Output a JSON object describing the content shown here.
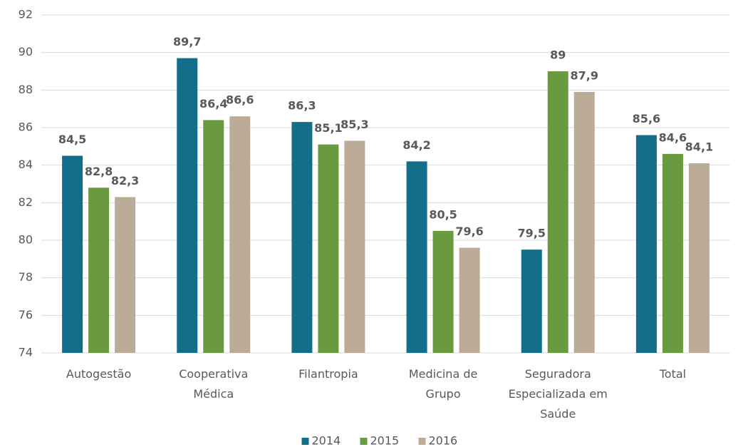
{
  "chart_data": {
    "type": "bar",
    "categories": [
      "Autogestão",
      "Cooperativa Médica",
      "Filantropia",
      "Medicina de Grupo",
      "Seguradora Especializada em Saúde",
      "Total"
    ],
    "series": [
      {
        "name": "2014",
        "color": "#136e8a",
        "values": [
          84.5,
          89.7,
          86.3,
          84.2,
          79.5,
          85.6
        ],
        "value_labels": [
          "84,5",
          "89,7",
          "86,3",
          "84,2",
          "79,5",
          "85,6"
        ]
      },
      {
        "name": "2015",
        "color": "#6a9a3f",
        "values": [
          82.8,
          86.4,
          85.1,
          80.5,
          89,
          84.6
        ],
        "value_labels": [
          "82,8",
          "86,4",
          "85,1",
          "80,5",
          "89",
          "84,6"
        ]
      },
      {
        "name": "2016",
        "color": "#bcac97",
        "values": [
          82.3,
          86.6,
          85.3,
          79.6,
          87.9,
          84.1
        ],
        "value_labels": [
          "82,3",
          "86,6",
          "85,3",
          "79,6",
          "87,9",
          "84,1"
        ]
      }
    ],
    "ylim": [
      74,
      92
    ],
    "yticks": [
      74,
      76,
      78,
      80,
      82,
      84,
      86,
      88,
      90,
      92
    ],
    "grid": true,
    "legend": "bottom"
  }
}
